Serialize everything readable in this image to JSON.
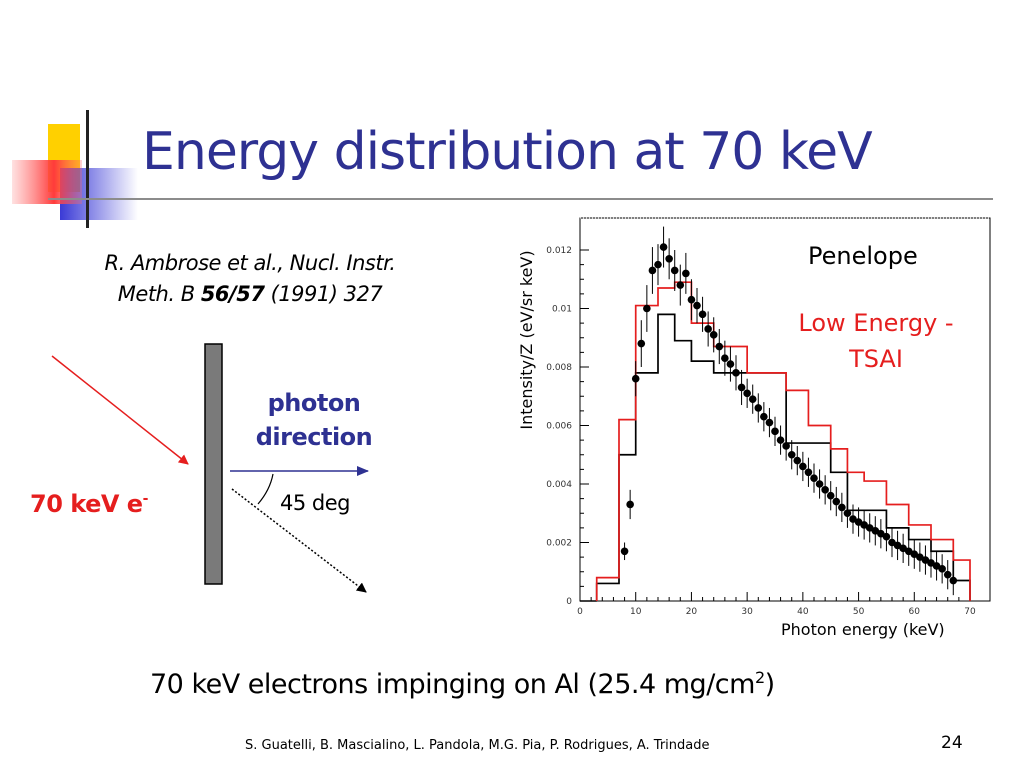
{
  "slide": {
    "title": "Energy distribution at 70 keV",
    "citation": {
      "authors": "R. Ambrose et al., Nucl. Instr.",
      "journal": "Meth. B",
      "volume": "56/57",
      "year_pages": "(1991) 327"
    },
    "diagram": {
      "photon_direction_line1": "photon",
      "photon_direction_line2": "direction",
      "angle_label": "45 deg",
      "beam_label": "70 keV e",
      "beam_label_sup": "-"
    },
    "caption": {
      "text": "70 keV electrons impinging on Al (25.4 mg/cm",
      "sup": "2",
      "close": ")"
    },
    "footer": "S. Guatelli, B. Mascialino, L. Pandola, M.G. Pia, P. Rodrigues, A. Trindade",
    "page_number": "24"
  },
  "colors": {
    "title": "#2e3192",
    "accent_red": "#e51e1e",
    "penelope": "#000000",
    "low_energy": "#e51e1e"
  },
  "chart_data": {
    "type": "line",
    "xlabel": "Photon energy (keV)",
    "ylabel": "Intensity/Z (eV/sr keV)",
    "xlim": [
      0,
      70
    ],
    "ylim": [
      0,
      0.0125
    ],
    "x_ticks": [
      0,
      10,
      20,
      30,
      40,
      50,
      60,
      70
    ],
    "x_tick_labels": [
      "0",
      "10",
      "20",
      "30",
      "40",
      "50",
      "60",
      "70"
    ],
    "y_ticks": [
      0,
      0.002,
      0.004,
      0.006,
      0.008,
      0.01,
      0.012
    ],
    "y_tick_labels": [
      "0",
      "0.002",
      "0.004",
      "0.006",
      "0.008",
      "0.01",
      "0.012"
    ],
    "grid": false,
    "series": [
      {
        "name": "Penelope",
        "kind": "step",
        "edges": [
          3,
          7,
          10,
          14,
          17,
          20,
          24,
          30,
          37,
          41,
          45,
          48,
          51,
          55,
          59,
          63,
          67,
          70
        ],
        "values": [
          0.0006,
          0.005,
          0.0078,
          0.0098,
          0.0089,
          0.0082,
          0.0078,
          0.0078,
          0.0054,
          0.0054,
          0.0044,
          0.0031,
          0.0031,
          0.0025,
          0.0021,
          0.0017,
          0.0007
        ]
      },
      {
        "name": "Low Energy - TSAI",
        "kind": "step",
        "edges": [
          3,
          7,
          10,
          14,
          17,
          20,
          24,
          30,
          37,
          41,
          45,
          48,
          51,
          55,
          59,
          63,
          67,
          70
        ],
        "values": [
          0.0008,
          0.0062,
          0.0101,
          0.0107,
          0.0109,
          0.0095,
          0.0087,
          0.0078,
          0.0072,
          0.006,
          0.0052,
          0.0044,
          0.0041,
          0.0033,
          0.0026,
          0.0021,
          0.0014
        ]
      },
      {
        "name": "R. Ambrose et al., Nucl. Instr. Meth. B 56/57 (1991) 327",
        "kind": "points_with_errors",
        "x": [
          8,
          9,
          10,
          11,
          12,
          13,
          14,
          15,
          16,
          17,
          18,
          19,
          20,
          21,
          22,
          23,
          24,
          25,
          26,
          27,
          28,
          29,
          30,
          31,
          32,
          33,
          34,
          35,
          36,
          37,
          38,
          39,
          40,
          41,
          42,
          43,
          44,
          45,
          46,
          47,
          48,
          49,
          50,
          51,
          52,
          53,
          54,
          55,
          56,
          57,
          58,
          59,
          60,
          61,
          62,
          63,
          64,
          65,
          66,
          67
        ],
        "y": [
          0.0017,
          0.0033,
          0.0076,
          0.0088,
          0.01,
          0.0113,
          0.0115,
          0.0121,
          0.0117,
          0.0113,
          0.0108,
          0.0112,
          0.0103,
          0.0101,
          0.0098,
          0.0093,
          0.0091,
          0.0087,
          0.0083,
          0.0081,
          0.0078,
          0.0073,
          0.0071,
          0.0069,
          0.0066,
          0.0063,
          0.0061,
          0.0058,
          0.0055,
          0.0053,
          0.005,
          0.0048,
          0.0046,
          0.0044,
          0.0042,
          0.004,
          0.0038,
          0.0036,
          0.0034,
          0.0032,
          0.003,
          0.0028,
          0.0027,
          0.0026,
          0.0025,
          0.0024,
          0.0023,
          0.0022,
          0.002,
          0.0019,
          0.0018,
          0.0017,
          0.0016,
          0.0015,
          0.0014,
          0.0013,
          0.0012,
          0.0011,
          0.0009,
          0.0007
        ],
        "err": [
          0.0003,
          0.0005,
          0.0006,
          0.0008,
          0.0008,
          0.0008,
          0.0007,
          0.0007,
          0.0007,
          0.0007,
          0.0007,
          0.0007,
          0.0007,
          0.0006,
          0.0006,
          0.0006,
          0.0006,
          0.0006,
          0.0006,
          0.0006,
          0.0006,
          0.0006,
          0.0005,
          0.0005,
          0.0005,
          0.0005,
          0.0005,
          0.0005,
          0.0005,
          0.0005,
          0.0005,
          0.0005,
          0.0005,
          0.0005,
          0.0005,
          0.0005,
          0.0005,
          0.0005,
          0.0005,
          0.0005,
          0.0005,
          0.0005,
          0.0005,
          0.0005,
          0.0005,
          0.0005,
          0.0005,
          0.0005,
          0.0005,
          0.0005,
          0.0005,
          0.0005,
          0.0005,
          0.0005,
          0.0005,
          0.0005,
          0.0005,
          0.0005,
          0.0005,
          0.0005
        ]
      }
    ],
    "legend": [
      "Penelope",
      "Low Energy - TSAI"
    ]
  }
}
